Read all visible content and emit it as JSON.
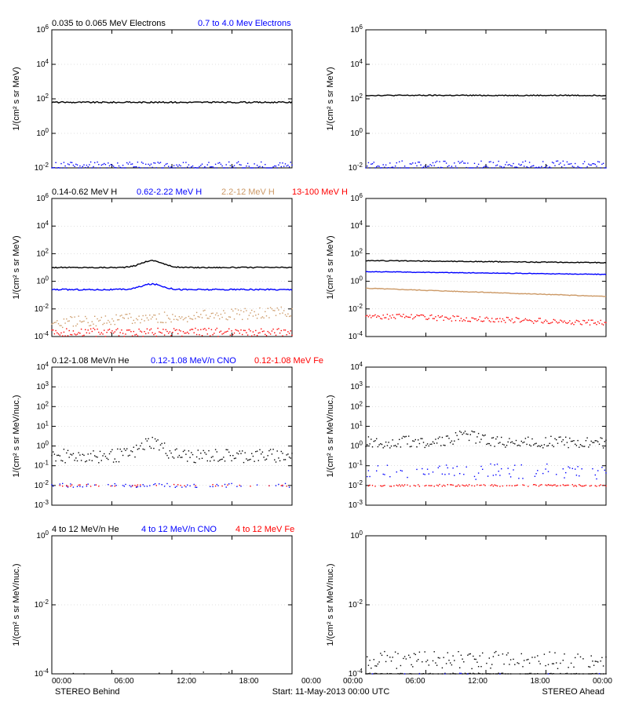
{
  "global": {
    "background_color": "#ffffff",
    "axis_color": "#000000",
    "font_family": "Arial, sans-serif",
    "label_fontsize": 10,
    "title_fontsize": 11,
    "xtick_labels": [
      "00:00",
      "06:00",
      "12:00",
      "18:00",
      "00:00"
    ],
    "bottom_left_label": "STEREO Behind",
    "bottom_center_label": "Start: 11-May-2013 00:00 UTC",
    "bottom_right_label": "STEREO Ahead",
    "marker_size": 1.4,
    "xlim": [
      0,
      24
    ]
  },
  "series_colors": {
    "black": "#000000",
    "blue": "#0000ff",
    "tan": "#cc9966",
    "red": "#ff0000"
  },
  "rows": [
    {
      "titles": [
        {
          "text": "0.035 to 0.065 MeV Electrons",
          "color": "black"
        },
        {
          "text": "0.7 to 4.0 Mev Electrons",
          "color": "blue"
        }
      ],
      "ylabel": "1/(cm² s sr MeV)",
      "ylim_exp": [
        -2,
        6
      ],
      "ytick_exp": [
        -2,
        0,
        2,
        4,
        6
      ],
      "left": {
        "series": [
          {
            "color": "black",
            "style": "line",
            "base_exp": 1.8,
            "noise": 0.08,
            "bump": 0
          },
          {
            "color": "blue",
            "style": "scatter",
            "base_exp": -1.9,
            "noise": 0.25
          }
        ]
      },
      "right": {
        "series": [
          {
            "color": "black",
            "style": "line",
            "base_exp": 2.2,
            "noise": 0.06
          },
          {
            "color": "blue",
            "style": "scatter",
            "base_exp": -1.85,
            "noise": 0.25
          }
        ]
      }
    },
    {
      "titles": [
        {
          "text": "0.14-0.62 MeV H",
          "color": "black"
        },
        {
          "text": "0.62-2.22 MeV H",
          "color": "blue"
        },
        {
          "text": "2.2-12 MeV H",
          "color": "tan"
        },
        {
          "text": "13-100 MeV H",
          "color": "red"
        }
      ],
      "ylabel": "1/(cm² s sr MeV)",
      "ylim_exp": [
        -4,
        6
      ],
      "ytick_exp": [
        -4,
        -2,
        0,
        2,
        4,
        6
      ],
      "left": {
        "series": [
          {
            "color": "black",
            "style": "line",
            "base_exp": 1.0,
            "noise": 0.08,
            "bump": 0.5
          },
          {
            "color": "blue",
            "style": "line",
            "base_exp": -0.6,
            "noise": 0.1,
            "bump": 0.4
          },
          {
            "color": "tan",
            "style": "scatter",
            "base_exp": -3.0,
            "noise": 0.4,
            "trend": 0.8
          },
          {
            "color": "red",
            "style": "scatter",
            "base_exp": -3.7,
            "noise": 0.3
          }
        ]
      },
      "right": {
        "series": [
          {
            "color": "black",
            "style": "line",
            "base_exp": 1.5,
            "noise": 0.06,
            "trend": -0.15
          },
          {
            "color": "blue",
            "style": "line",
            "base_exp": 0.7,
            "noise": 0.05,
            "trend": -0.2
          },
          {
            "color": "tan",
            "style": "line",
            "base_exp": -0.5,
            "noise": 0.05,
            "trend": -0.6
          },
          {
            "color": "red",
            "style": "scatter",
            "base_exp": -2.5,
            "noise": 0.2,
            "trend": -0.5
          }
        ]
      }
    },
    {
      "titles": [
        {
          "text": "0.12-1.08 MeV/n He",
          "color": "black"
        },
        {
          "text": "0.12-1.08 MeV/n CNO",
          "color": "blue"
        },
        {
          "text": "0.12-1.08 MeV Fe",
          "color": "red"
        }
      ],
      "ylabel": "1/(cm² s sr MeV/nuc.)",
      "ylim_exp": [
        -3,
        4
      ],
      "ytick_exp": [
        -3,
        -2,
        -1,
        0,
        1,
        2,
        3,
        4
      ],
      "left": {
        "series": [
          {
            "color": "black",
            "style": "scatter",
            "base_exp": -0.5,
            "noise": 0.35,
            "bump": 0.7
          },
          {
            "color": "blue",
            "style": "sparse",
            "base_exp": -2.0,
            "noise": 0.1,
            "density": 0.35
          },
          {
            "color": "red",
            "style": "sparse",
            "base_exp": -2.0,
            "noise": 0.05,
            "density": 0.2
          }
        ]
      },
      "right": {
        "series": [
          {
            "color": "black",
            "style": "scatter",
            "base_exp": 0.2,
            "noise": 0.3,
            "bump": 0.3
          },
          {
            "color": "blue",
            "style": "sparse",
            "base_exp": -1.3,
            "noise": 0.4,
            "density": 0.5
          },
          {
            "color": "red",
            "style": "sparse",
            "base_exp": -2.0,
            "noise": 0.05,
            "density": 0.6
          }
        ]
      }
    },
    {
      "titles": [
        {
          "text": "4 to 12 MeV/n He",
          "color": "black"
        },
        {
          "text": "4 to 12 MeV/n CNO",
          "color": "blue"
        },
        {
          "text": "4 to 12 MeV Fe",
          "color": "red"
        }
      ],
      "ylabel": "1/(cm² s sr MeV/nuc.)",
      "ylim_exp": [
        -4,
        0
      ],
      "ytick_exp": [
        -4,
        -2,
        0
      ],
      "left": {
        "series": [
          {
            "color": "black",
            "style": "sparse",
            "base_exp": -4.0,
            "noise": 0.05,
            "density": 0.08
          }
        ]
      },
      "right": {
        "series": [
          {
            "color": "black",
            "style": "sparse",
            "base_exp": -3.6,
            "noise": 0.25,
            "density": 0.7
          },
          {
            "color": "black",
            "style": "sparse",
            "base_exp": -4.0,
            "noise": 0.02,
            "density": 0.5
          },
          {
            "color": "blue",
            "style": "sparse",
            "base_exp": -4.0,
            "noise": 0.02,
            "density": 0.05
          }
        ]
      }
    }
  ]
}
